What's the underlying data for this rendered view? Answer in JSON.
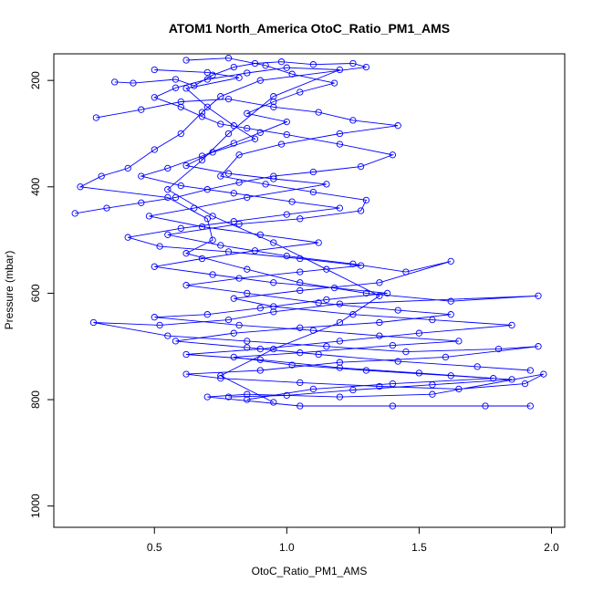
{
  "chart_data": {
    "type": "scatter",
    "title": "ATOM1 North_America OtoC_Ratio_PM1_AMS",
    "xlabel": "OtoC_Ratio_PM1_AMS",
    "ylabel": "Pressure (mbar)",
    "xlim": [
      0.12,
      2.05
    ],
    "ylim": [
      1040,
      150
    ],
    "y_reversed": true,
    "x_ticks": [
      0.5,
      1.0,
      1.5,
      2.0
    ],
    "x_tick_labels": [
      "0.5",
      "1.0",
      "1.5",
      "2.0"
    ],
    "y_ticks": [
      200,
      400,
      600,
      800,
      1000
    ],
    "y_tick_labels": [
      "200",
      "400",
      "600",
      "800",
      "1000"
    ],
    "grid": false,
    "marker": "open-circle",
    "connected": true,
    "colors": {
      "series": "#0000ff",
      "axis": "#000000"
    },
    "series": [
      {
        "points": [
          [
            0.35,
            203
          ],
          [
            0.42,
            205
          ],
          [
            0.58,
            198
          ],
          [
            0.65,
            210
          ],
          [
            0.72,
            190
          ],
          [
            0.8,
            175
          ],
          [
            0.88,
            168
          ],
          [
            0.98,
            165
          ],
          [
            1.1,
            170
          ],
          [
            1.25,
            168
          ],
          [
            1.3,
            175
          ],
          [
            0.9,
            200
          ],
          [
            0.75,
            230
          ],
          [
            0.68,
            260
          ],
          [
            0.6,
            300
          ],
          [
            0.5,
            330
          ],
          [
            0.4,
            365
          ],
          [
            0.3,
            380
          ],
          [
            0.22,
            400
          ],
          [
            0.55,
            420
          ],
          [
            0.7,
            460
          ],
          [
            0.72,
            500
          ],
          [
            0.62,
            525
          ],
          [
            0.85,
            555
          ],
          [
            1.05,
            580
          ],
          [
            1.3,
            600
          ],
          [
            1.62,
            615
          ],
          [
            1.95,
            605
          ],
          [
            1.2,
            620
          ],
          [
            0.95,
            635
          ],
          [
            0.78,
            650
          ],
          [
            0.52,
            660
          ],
          [
            0.27,
            655
          ],
          [
            0.55,
            680
          ],
          [
            0.85,
            690
          ],
          [
            1.15,
            700
          ],
          [
            1.45,
            710
          ],
          [
            1.8,
            705
          ],
          [
            1.95,
            700
          ],
          [
            1.6,
            720
          ],
          [
            1.2,
            730
          ],
          [
            0.9,
            745
          ],
          [
            0.62,
            752
          ],
          [
            0.75,
            760
          ],
          [
            1.05,
            768
          ],
          [
            1.35,
            775
          ],
          [
            1.65,
            780
          ],
          [
            1.9,
            770
          ],
          [
            1.97,
            752
          ],
          [
            1.55,
            790
          ],
          [
            1.2,
            795
          ],
          [
            0.85,
            790
          ],
          [
            0.7,
            795
          ],
          [
            1.05,
            812
          ],
          [
            1.4,
            812
          ],
          [
            1.75,
            812
          ],
          [
            1.92,
            812
          ]
        ]
      },
      {
        "points": [
          [
            0.28,
            270
          ],
          [
            0.45,
            255
          ],
          [
            0.6,
            240
          ],
          [
            0.78,
            235
          ],
          [
            0.95,
            250
          ],
          [
            1.12,
            260
          ],
          [
            1.25,
            275
          ],
          [
            1.42,
            285
          ],
          [
            1.2,
            300
          ],
          [
            0.98,
            320
          ],
          [
            0.82,
            340
          ],
          [
            0.75,
            380
          ],
          [
            0.92,
            395
          ],
          [
            1.1,
            410
          ],
          [
            1.3,
            425
          ],
          [
            1.28,
            445
          ],
          [
            1.05,
            460
          ],
          [
            0.82,
            470
          ],
          [
            0.55,
            490
          ],
          [
            0.75,
            510
          ],
          [
            1.0,
            530
          ],
          [
            1.25,
            545
          ],
          [
            1.45,
            560
          ],
          [
            1.62,
            540
          ],
          [
            1.35,
            580
          ],
          [
            1.05,
            595
          ],
          [
            0.8,
            610
          ],
          [
            0.95,
            625
          ],
          [
            1.25,
            640
          ],
          [
            1.55,
            650
          ],
          [
            1.85,
            660
          ],
          [
            1.5,
            675
          ],
          [
            1.2,
            690
          ],
          [
            0.9,
            705
          ],
          [
            0.62,
            715
          ],
          [
            0.9,
            725
          ],
          [
            1.2,
            740
          ],
          [
            1.5,
            750
          ],
          [
            1.78,
            760
          ],
          [
            1.4,
            770
          ],
          [
            1.1,
            780
          ],
          [
            0.85,
            800
          ]
        ]
      },
      {
        "points": [
          [
            0.5,
            180
          ],
          [
            0.7,
            185
          ],
          [
            0.82,
            195
          ],
          [
            0.62,
            215
          ],
          [
            0.7,
            250
          ],
          [
            0.8,
            285
          ],
          [
            0.88,
            310
          ],
          [
            0.72,
            335
          ],
          [
            0.62,
            360
          ],
          [
            0.78,
            375
          ],
          [
            0.95,
            385
          ],
          [
            1.15,
            395
          ],
          [
            0.85,
            420
          ],
          [
            0.65,
            440
          ],
          [
            0.48,
            455
          ],
          [
            0.68,
            475
          ],
          [
            0.9,
            490
          ],
          [
            1.12,
            505
          ],
          [
            0.88,
            520
          ],
          [
            0.68,
            535
          ],
          [
            0.5,
            550
          ],
          [
            0.72,
            565
          ],
          [
            0.95,
            580
          ],
          [
            1.18,
            590
          ],
          [
            1.38,
            600
          ],
          [
            1.15,
            612
          ],
          [
            0.9,
            628
          ],
          [
            0.7,
            640
          ],
          [
            0.5,
            645
          ],
          [
            0.82,
            660
          ],
          [
            1.1,
            670
          ],
          [
            1.35,
            680
          ],
          [
            1.65,
            690
          ],
          [
            1.4,
            698
          ],
          [
            1.05,
            712
          ],
          [
            0.8,
            720
          ],
          [
            1.02,
            735
          ],
          [
            1.3,
            745
          ],
          [
            1.62,
            755
          ],
          [
            1.85,
            762
          ],
          [
            1.55,
            772
          ],
          [
            1.25,
            782
          ],
          [
            1.0,
            792
          ],
          [
            0.78,
            795
          ]
        ]
      },
      {
        "points": [
          [
            0.62,
            162
          ],
          [
            0.78,
            158
          ],
          [
            0.92,
            172
          ],
          [
            1.02,
            188
          ],
          [
            1.18,
            205
          ],
          [
            1.05,
            222
          ],
          [
            0.95,
            240
          ],
          [
            0.85,
            262
          ],
          [
            1.0,
            278
          ],
          [
            0.9,
            298
          ],
          [
            0.8,
            318
          ],
          [
            0.68,
            342
          ],
          [
            0.55,
            365
          ],
          [
            0.45,
            380
          ],
          [
            0.6,
            398
          ],
          [
            0.8,
            412
          ],
          [
            1.02,
            428
          ],
          [
            1.2,
            440
          ],
          [
            1.0,
            452
          ],
          [
            0.8,
            465
          ],
          [
            0.6,
            478
          ],
          [
            0.4,
            495
          ],
          [
            0.52,
            512
          ],
          [
            0.78,
            522
          ],
          [
            1.05,
            535
          ],
          [
            1.28,
            548
          ],
          [
            1.05,
            560
          ],
          [
            0.82,
            572
          ],
          [
            0.62,
            585
          ],
          [
            0.85,
            600
          ],
          [
            1.12,
            618
          ],
          [
            1.42,
            632
          ],
          [
            1.62,
            640
          ],
          [
            1.35,
            655
          ],
          [
            1.05,
            665
          ],
          [
            0.8,
            675
          ],
          [
            0.58,
            690
          ],
          [
            0.85,
            702
          ],
          [
            1.12,
            715
          ],
          [
            1.42,
            728
          ],
          [
            1.72,
            738
          ],
          [
            1.92,
            745
          ]
        ]
      },
      {
        "points": [
          [
            0.2,
            450
          ],
          [
            0.32,
            440
          ],
          [
            0.45,
            430
          ],
          [
            0.58,
            420
          ],
          [
            0.7,
            405
          ],
          [
            0.82,
            392
          ],
          [
            0.95,
            380
          ],
          [
            1.1,
            372
          ],
          [
            1.28,
            362
          ],
          [
            1.4,
            340
          ],
          [
            1.2,
            320
          ],
          [
            1.0,
            302
          ],
          [
            0.85,
            290
          ],
          [
            0.75,
            282
          ],
          [
            0.68,
            268
          ],
          [
            0.6,
            250
          ],
          [
            0.5,
            232
          ],
          [
            0.58,
            214
          ],
          [
            0.7,
            198
          ],
          [
            0.85,
            186
          ],
          [
            1.0,
            176
          ],
          [
            1.2,
            180
          ],
          [
            0.95,
            230
          ],
          [
            0.78,
            300
          ],
          [
            0.68,
            350
          ],
          [
            0.55,
            405
          ],
          [
            0.72,
            455
          ],
          [
            0.95,
            505
          ],
          [
            1.15,
            555
          ],
          [
            1.35,
            605
          ],
          [
            1.2,
            655
          ],
          [
            0.95,
            705
          ],
          [
            0.75,
            755
          ],
          [
            0.95,
            805
          ]
        ]
      }
    ]
  }
}
